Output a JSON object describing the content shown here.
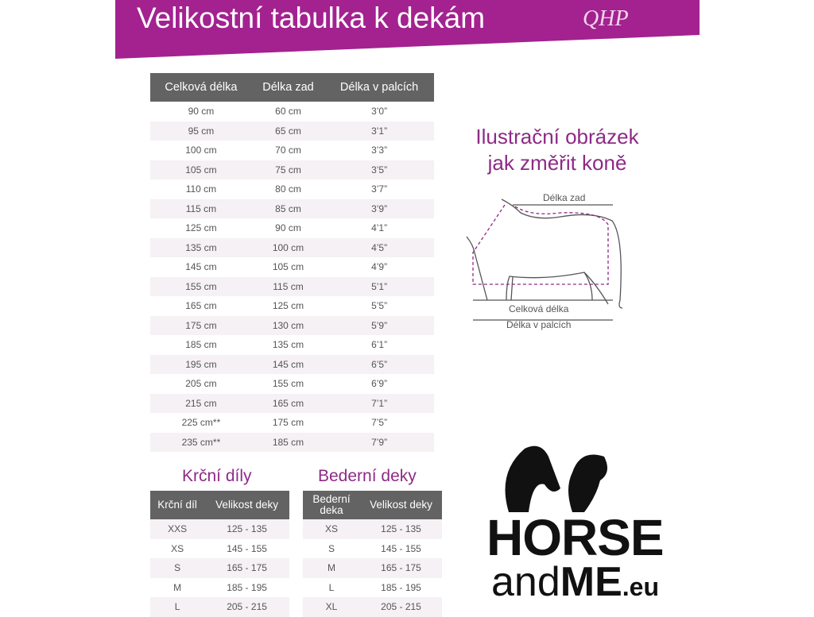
{
  "header": {
    "title": "Velikostní tabulka k dekám",
    "logo": "QHP",
    "color": "#a3228f"
  },
  "main_table": {
    "headers": [
      "Celková délka",
      "Délka zad",
      "Délka v palcích"
    ],
    "rows": [
      [
        "90 cm",
        "60 cm",
        "3’0”"
      ],
      [
        "95 cm",
        "65 cm",
        "3’1”"
      ],
      [
        "100 cm",
        "70 cm",
        "3’3”"
      ],
      [
        "105 cm",
        "75 cm",
        "3’5”"
      ],
      [
        "110 cm",
        "80 cm",
        "3’7”"
      ],
      [
        "115 cm",
        "85 cm",
        "3’9”"
      ],
      [
        "125 cm",
        "90 cm",
        "4’1”"
      ],
      [
        "135 cm",
        "100 cm",
        "4’5”"
      ],
      [
        "145 cm",
        "105 cm",
        "4’9”"
      ],
      [
        "155 cm",
        "115 cm",
        "5’1”"
      ],
      [
        "165 cm",
        "125 cm",
        "5’5”"
      ],
      [
        "175 cm",
        "130 cm",
        "5’9”"
      ],
      [
        "185 cm",
        "135 cm",
        "6’1”"
      ],
      [
        "195 cm",
        "145 cm",
        "6’5”"
      ],
      [
        "205 cm",
        "155 cm",
        "6’9”"
      ],
      [
        "215 cm",
        "165 cm",
        "7’1”"
      ],
      [
        "225 cm**",
        "175 cm",
        "7’5”"
      ],
      [
        "235 cm**",
        "185 cm",
        "7’9”"
      ]
    ]
  },
  "illustration": {
    "title_line1": "Ilustrační obrázek",
    "title_line2": "jak změřit koně",
    "back_length": "Délka zad",
    "total_length": "Celková délka",
    "inch_length": "Délka v palcích"
  },
  "neck": {
    "title": "Krční díly",
    "headers": [
      "Krční díl",
      "Velikost deky"
    ],
    "rows": [
      [
        "XXS",
        "125 - 135"
      ],
      [
        "XS",
        "145 - 155"
      ],
      [
        "S",
        "165 - 175"
      ],
      [
        "M",
        "185 - 195"
      ],
      [
        "L",
        "205 - 215"
      ]
    ]
  },
  "loin": {
    "title": "Bederní deky",
    "headers": [
      "Bederní deka",
      "Velikost deky"
    ],
    "rows": [
      [
        "XS",
        "125 - 135"
      ],
      [
        "S",
        "145 - 155"
      ],
      [
        "M",
        "165 - 175"
      ],
      [
        "L",
        "185 - 195"
      ],
      [
        "XL",
        "205 - 215"
      ]
    ]
  },
  "brand": {
    "line1": "HORSE",
    "line2a": "and",
    "line2b": "ME",
    "line2c": ".eu"
  }
}
